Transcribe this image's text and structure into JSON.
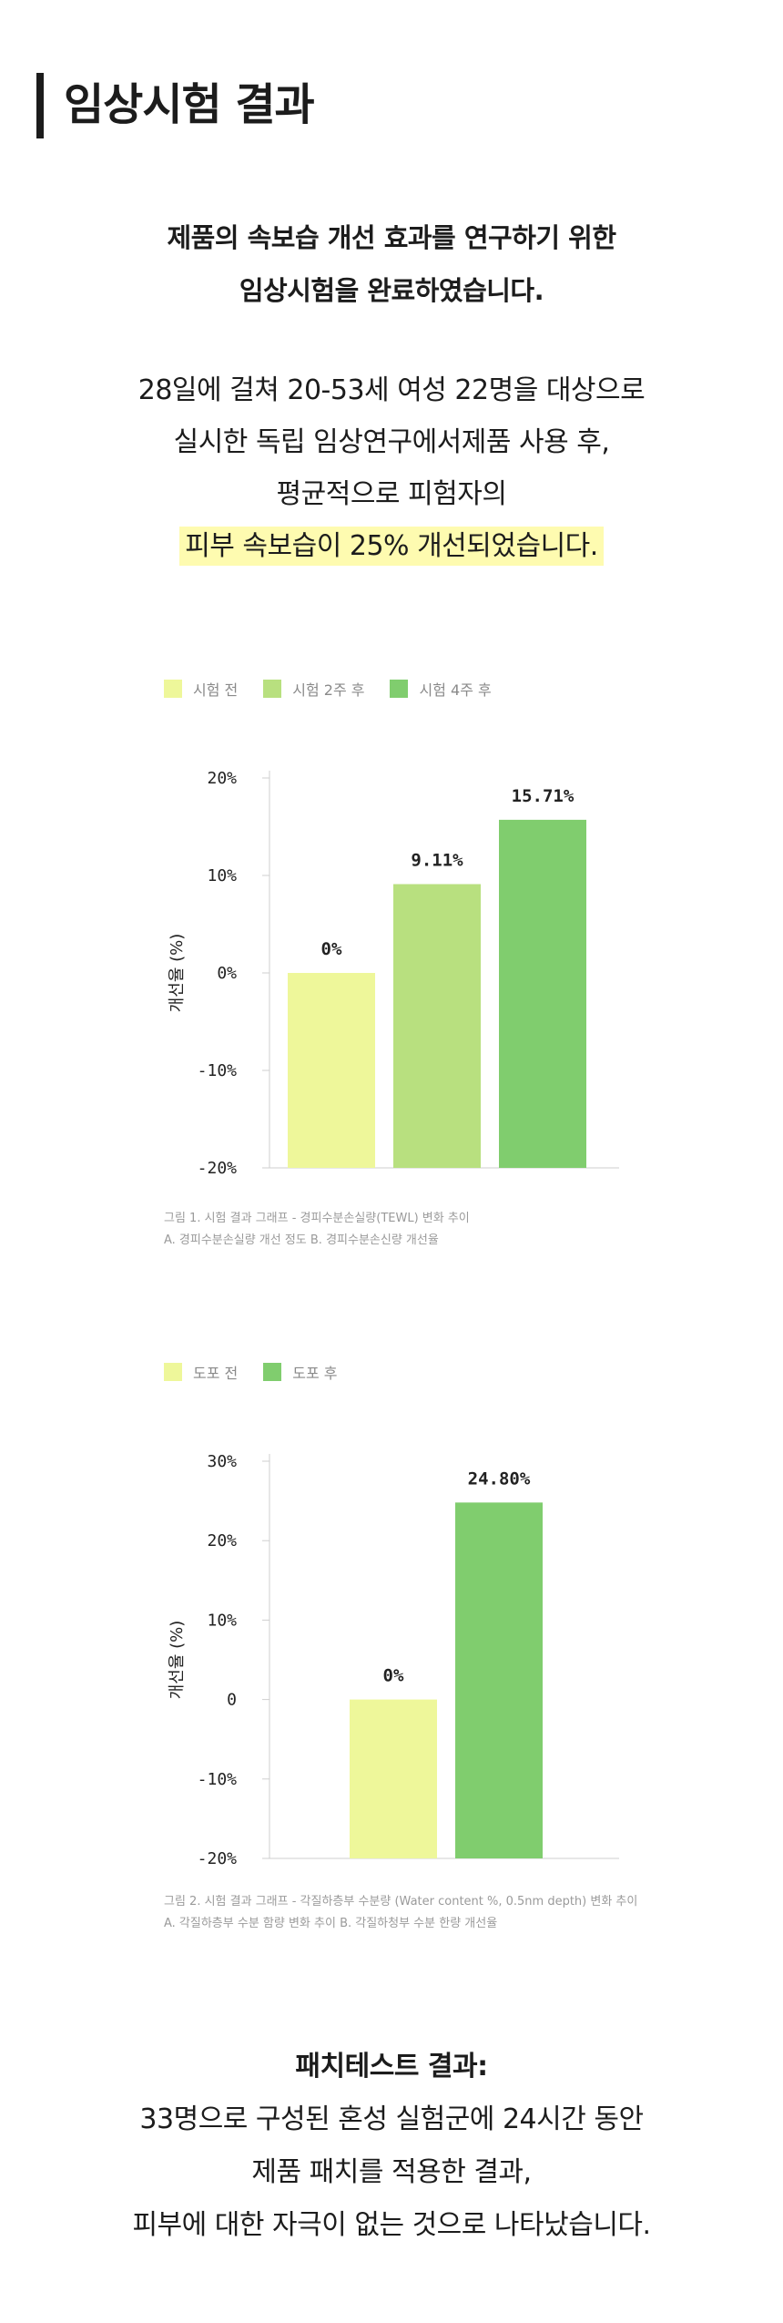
{
  "header": {
    "title": "임상시험 결과"
  },
  "intro": {
    "line1": "제품의 속보습 개선 효과를 연구하기 위한",
    "line2": "임상시험을 완료하였습니다."
  },
  "summary": {
    "line1": "28일에 걸쳐 20-53세 여성 22명을 대상으로",
    "line2": "실시한 독립 임상연구에서제품 사용 후,",
    "line3": "평균적으로 피험자의",
    "highlight": "피부 속보습이 25% 개선되었습니다."
  },
  "colors": {
    "light": "#eef79a",
    "mid": "#b8e07f",
    "dark": "#80cd6e",
    "highlight": "#fefbb0"
  },
  "chart_data": [
    {
      "type": "bar",
      "categories": [
        "시험 전",
        "시험 2주 후",
        "시험 4주 후"
      ],
      "values": [
        0,
        9.11,
        15.71
      ],
      "value_labels": [
        "0%",
        "9.11%",
        "15.71%"
      ],
      "ylabel": "개선율 (%)",
      "yticks": [
        "20%",
        "10%",
        "0%",
        "-10%",
        "-20%"
      ],
      "ytick_values": [
        20,
        10,
        0,
        -10,
        -20
      ],
      "ylim": [
        -20,
        20
      ],
      "legend": [
        "시험 전",
        "시험 2주 후",
        "시험 4주 후"
      ],
      "colors": [
        "#eef79a",
        "#b8e07f",
        "#80cd6e"
      ],
      "caption_line1": "그림 1. 시험 결과 그래프 - 경피수분손실량(TEWL) 변화 추이",
      "caption_line2": "A. 경피수분손실량 개선 정도  B. 경피수분손신량 개선율"
    },
    {
      "type": "bar",
      "categories": [
        "도포 전",
        "도포 후"
      ],
      "values": [
        0,
        24.8
      ],
      "value_labels": [
        "0%",
        "24.80%"
      ],
      "ylabel": "개선율 (%)",
      "yticks": [
        "30%",
        "20%",
        "10%",
        "0",
        "-10%",
        "-20%"
      ],
      "ytick_values": [
        30,
        20,
        10,
        0,
        -10,
        -20
      ],
      "ylim": [
        -20,
        30
      ],
      "legend": [
        "도포 전",
        "도포 후"
      ],
      "colors": [
        "#eef79a",
        "#80cd6e"
      ],
      "caption_line1": "그림 2. 시험 결과 그래프 - 각질하층부 수분량 (Water content %, 0.5nm depth) 변화 추이",
      "caption_line2": "A. 각질하층부 수분 함량 변화 추이  B. 각질하청부 수분 한량 개선율"
    }
  ],
  "patch": {
    "title": "패치테스트 결과:",
    "line1": "33명으로 구성된 혼성 실험군에 24시간 동안",
    "line2": "제품 패치를 적용한 결과,",
    "line3": "피부에 대한 자극이 없는 것으로 나타났습니다."
  }
}
